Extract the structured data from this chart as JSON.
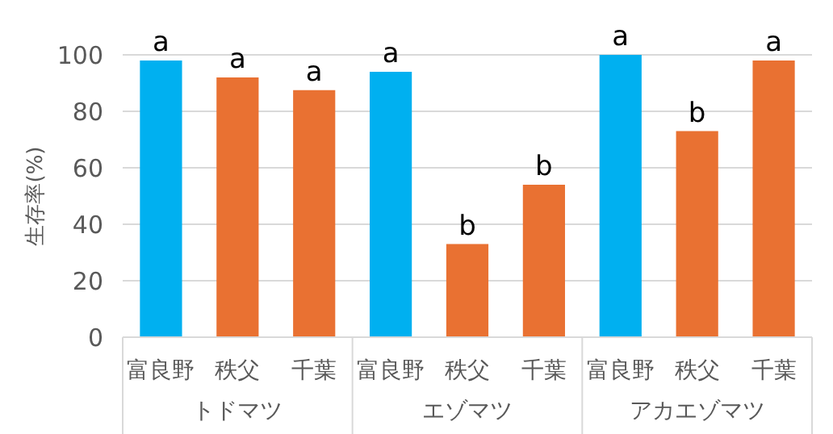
{
  "chart_data": {
    "type": "bar",
    "ylabel": "生存率(%)",
    "categories": [
      "富良野",
      "秩父",
      "千葉",
      "富良野",
      "秩父",
      "千葉",
      "富良野",
      "秩父",
      "千葉"
    ],
    "values": [
      98,
      92,
      87.5,
      94,
      33,
      54,
      100,
      73,
      98
    ],
    "colors": [
      "#00b0f0",
      "#e97132",
      "#e97132",
      "#00b0f0",
      "#e97132",
      "#e97132",
      "#00b0f0",
      "#e97132",
      "#e97132"
    ],
    "value_labels": [
      "a",
      "a",
      "a",
      "a",
      "b",
      "b",
      "a",
      "b",
      "a"
    ],
    "annotations": [
      "トドマツ",
      "エゾマツ",
      "アカエゾマツ"
    ],
    "ylim": [
      0,
      100
    ],
    "yticks": [
      0,
      20,
      40,
      60,
      80,
      100
    ],
    "grid": "y"
  }
}
